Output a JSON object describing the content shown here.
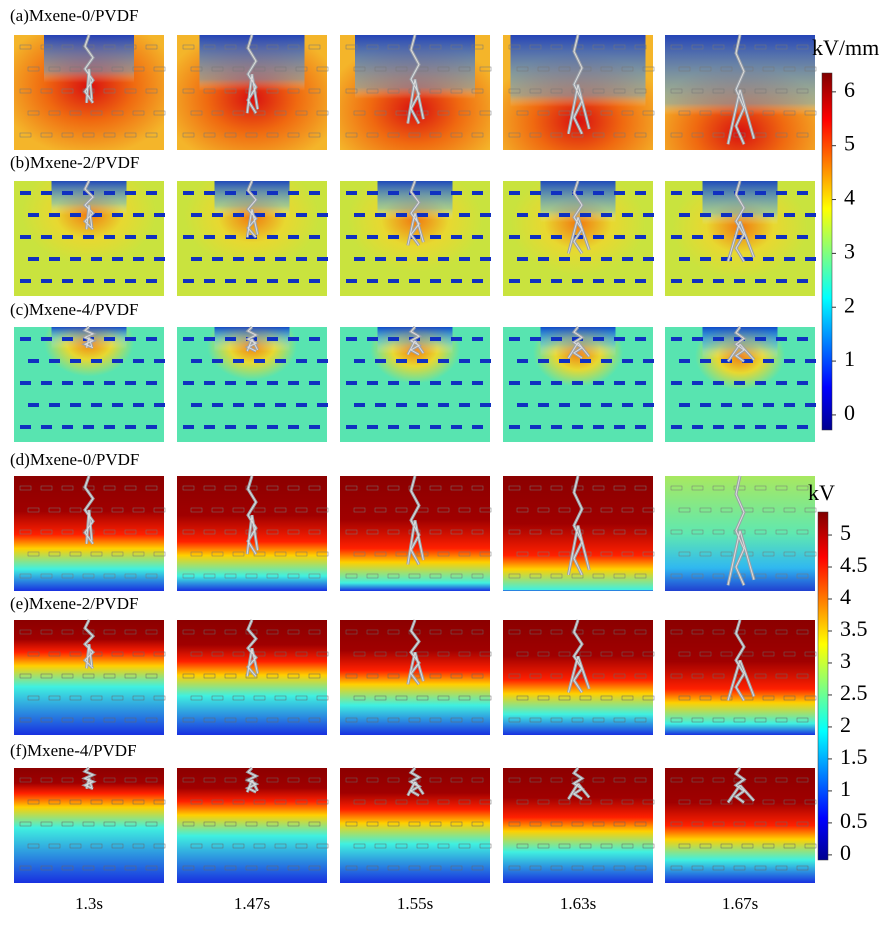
{
  "rows": [
    {
      "label": "(a)Mxene-0/PVDF"
    },
    {
      "label": "(b)Mxene-2/PVDF"
    },
    {
      "label": "(c)Mxene-4/PVDF"
    },
    {
      "label": "(d)Mxene-0/PVDF"
    },
    {
      "label": "(e)Mxene-2/PVDF"
    },
    {
      "label": "(f)Mxene-4/PVDF"
    }
  ],
  "times": [
    "1.3s",
    "1.47s",
    "1.55s",
    "1.63s",
    "1.67s"
  ],
  "colorbars": [
    {
      "unit": "kV/mm",
      "lim": [
        -0.28,
        6.35
      ],
      "ticks": [
        0,
        1,
        2,
        3,
        4,
        5,
        6
      ]
    },
    {
      "unit": "kV",
      "lim": [
        -0.08,
        5.36
      ],
      "ticks": [
        0,
        0.5,
        1,
        1.5,
        2,
        2.5,
        3,
        3.5,
        4,
        4.5,
        5
      ]
    }
  ]
}
